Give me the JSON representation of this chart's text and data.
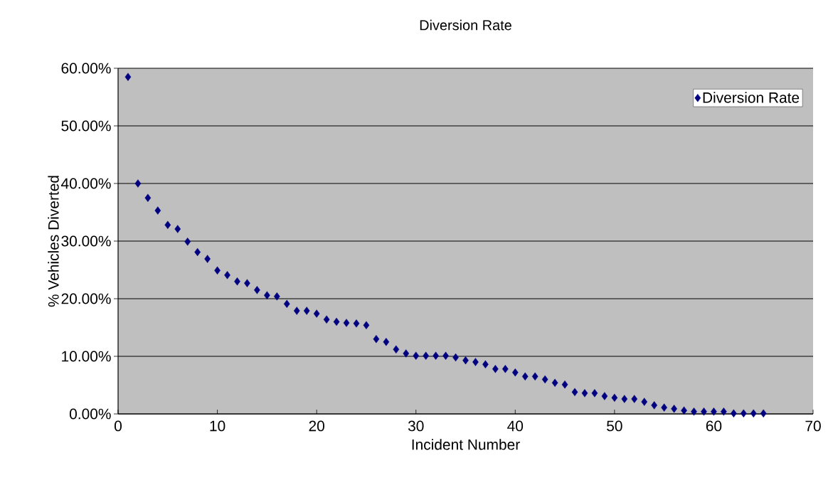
{
  "chart_data": {
    "type": "scatter",
    "title": "Diversion Rate",
    "xlabel": "Incident Number",
    "ylabel": "% Vehicles Diverted",
    "x": [
      1,
      2,
      3,
      4,
      5,
      6,
      7,
      8,
      9,
      10,
      11,
      12,
      13,
      14,
      15,
      16,
      17,
      18,
      19,
      20,
      21,
      22,
      23,
      24,
      25,
      26,
      27,
      28,
      29,
      30,
      31,
      32,
      33,
      34,
      35,
      36,
      37,
      38,
      39,
      40,
      41,
      42,
      43,
      44,
      45,
      46,
      47,
      48,
      49,
      50,
      51,
      52,
      53,
      54,
      55,
      56,
      57,
      58,
      59,
      60,
      61,
      62,
      63,
      64,
      65
    ],
    "series": [
      {
        "name": "Diversion Rate",
        "color": "#000080",
        "values": [
          58.5,
          40.0,
          37.5,
          35.3,
          32.8,
          32.1,
          29.9,
          28.1,
          26.9,
          24.9,
          24.1,
          23.0,
          22.7,
          21.5,
          20.6,
          20.4,
          19.1,
          17.9,
          17.9,
          17.4,
          16.4,
          16.0,
          15.8,
          15.7,
          15.4,
          13.0,
          12.5,
          11.2,
          10.5,
          10.1,
          10.1,
          10.1,
          10.1,
          9.8,
          9.3,
          9.0,
          8.6,
          7.8,
          7.8,
          7.2,
          6.5,
          6.5,
          6.0,
          5.4,
          5.1,
          3.8,
          3.6,
          3.6,
          3.1,
          2.8,
          2.6,
          2.6,
          2.1,
          1.5,
          1.1,
          0.9,
          0.6,
          0.4,
          0.4,
          0.4,
          0.4,
          0.1,
          0.1,
          0.1,
          0.1
        ]
      }
    ],
    "xlim": [
      0,
      70
    ],
    "xticks": [
      0,
      10,
      20,
      30,
      40,
      50,
      60,
      70
    ],
    "ylim": [
      0,
      60
    ],
    "yticks": [
      {
        "value": 0,
        "label": "0.00%"
      },
      {
        "value": 10,
        "label": "10.00%"
      },
      {
        "value": 20,
        "label": "20.00%"
      },
      {
        "value": 30,
        "label": "30.00%"
      },
      {
        "value": 40,
        "label": "40.00%"
      },
      {
        "value": 50,
        "label": "50.00%"
      },
      {
        "value": 60,
        "label": "60.00%"
      }
    ],
    "grid": "y",
    "legend": "top right",
    "marker": "diamond"
  }
}
